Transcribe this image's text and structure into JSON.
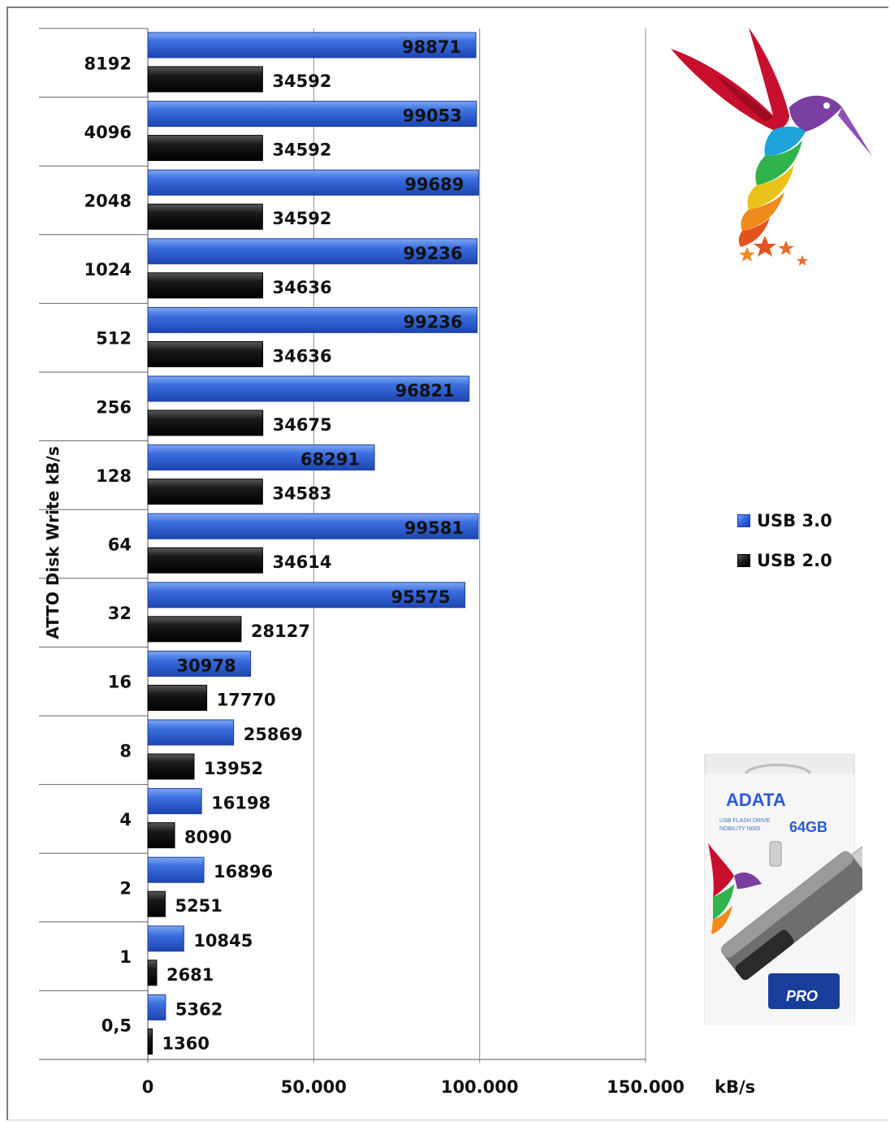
{
  "chart_data": {
    "type": "bar",
    "orientation": "horizontal",
    "ylabel": "ATTO Disk Write kB/s",
    "xlabel": "kB/s",
    "categories": [
      "8192",
      "4096",
      "2048",
      "1024",
      "512",
      "256",
      "128",
      "64",
      "32",
      "16",
      "8",
      "4",
      "2",
      "1",
      "0,5"
    ],
    "series": [
      {
        "name": "USB 3.0",
        "color": "#2d5fd8",
        "values": [
          98871,
          99053,
          99689,
          99236,
          99236,
          96821,
          68291,
          99581,
          95575,
          30978,
          25869,
          16198,
          16896,
          10845,
          5362
        ]
      },
      {
        "name": "USB 2.0",
        "color": "#111111",
        "values": [
          34592,
          34592,
          34592,
          34636,
          34636,
          34675,
          34583,
          34614,
          28127,
          17770,
          13952,
          8090,
          5251,
          2681,
          1360
        ]
      }
    ],
    "xlim": [
      0,
      150000
    ],
    "xticks": [
      0,
      50000,
      100000,
      150000
    ],
    "xtick_labels": [
      "0",
      "50.000",
      "100.000",
      "150.000"
    ],
    "grid": true,
    "legend": "right"
  },
  "images": {
    "bird_logo": "hummingbird-logo",
    "product": "adata-usb-flash-drive-package",
    "product_text": {
      "brand": "ADATA",
      "line1": "USB FLASH DRIVE",
      "line2": "NOBILITY N005",
      "capacity": "64GB",
      "badge": "PRO"
    }
  }
}
